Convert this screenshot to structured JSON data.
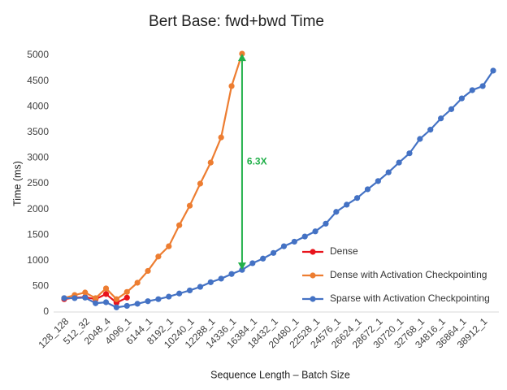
{
  "chart_data": {
    "type": "line",
    "title": "Bert Base: fwd+bwd Time",
    "x_label": "Sequence Length – Batch Size",
    "y_label": "Time (ms)",
    "categories": [
      "128_128",
      null,
      "512_32",
      null,
      "2048_4",
      null,
      "4096_1",
      null,
      "6144_1",
      null,
      "8192_1",
      null,
      "10240_1",
      null,
      "12288_1",
      null,
      "14336_1",
      null,
      "16384_1",
      null,
      "18432_1",
      null,
      "20480_1",
      null,
      "22528_1",
      null,
      "24576_1",
      null,
      "26624_1",
      null,
      "28672_1",
      null,
      "30720_1",
      null,
      "32768_1",
      null,
      "34816_1",
      null,
      "36864_1",
      null,
      "38912_1",
      null
    ],
    "series": [
      {
        "name": "Dense",
        "color": "#e8141c",
        "values": [
          250,
          280,
          290,
          250,
          350,
          180,
          280,
          null,
          null,
          null,
          null,
          null,
          null,
          null,
          null,
          null,
          null,
          null,
          null,
          null,
          null,
          null,
          null,
          null,
          null,
          null,
          null,
          null,
          null,
          null,
          null,
          null,
          null,
          null,
          null,
          null,
          null,
          null,
          null,
          null,
          null,
          null
        ]
      },
      {
        "name": "Dense with Activation Checkpointing",
        "color": "#ed7d31",
        "values": [
          270,
          330,
          380,
          270,
          460,
          250,
          390,
          570,
          800,
          1080,
          1280,
          1690,
          2070,
          2500,
          2910,
          3400,
          4400,
          5030,
          null,
          null,
          null,
          null,
          null,
          null,
          null,
          null,
          null,
          null,
          null,
          null,
          null,
          null,
          null,
          null,
          null,
          null,
          null,
          null,
          null,
          null,
          null,
          null
        ]
      },
      {
        "name": "Sparse with Activation Checkpointing",
        "color": "#4472c4",
        "values": [
          270,
          270,
          280,
          170,
          190,
          90,
          120,
          160,
          210,
          250,
          300,
          360,
          420,
          490,
          580,
          650,
          740,
          820,
          950,
          1040,
          1150,
          1280,
          1370,
          1470,
          1570,
          1720,
          1950,
          2090,
          2220,
          2390,
          2550,
          2720,
          2910,
          3090,
          3370,
          3550,
          3770,
          3950,
          4160,
          4320,
          4400,
          4700
        ]
      }
    ],
    "ylim": [
      0,
      5000
    ],
    "yticks": [
      0,
      500,
      1000,
      1500,
      2000,
      2500,
      3000,
      3500,
      4000,
      4500,
      5000
    ],
    "grid": false,
    "legend": "center right",
    "annotation": {
      "text": "6.3X",
      "color": "#22b04a"
    }
  }
}
